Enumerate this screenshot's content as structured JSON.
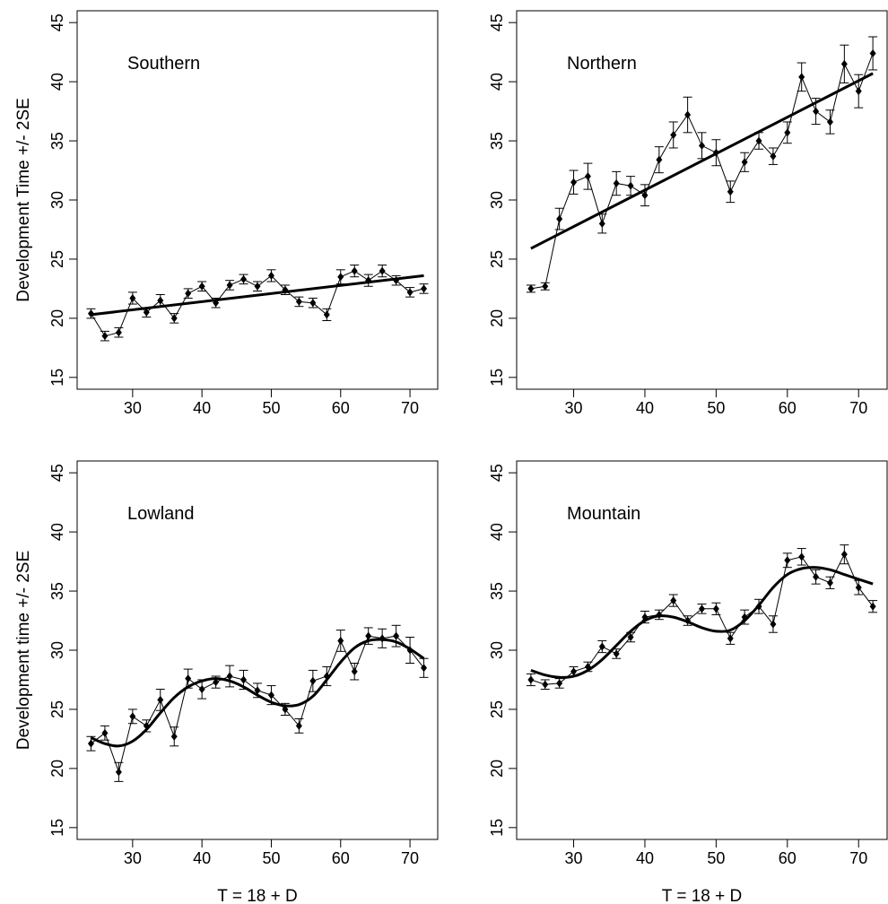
{
  "chart_data": [
    {
      "type": "line",
      "panel_label": "Southern",
      "ylabel": "Development Time +/- 2SE",
      "xlabel": "",
      "xlim": [
        22,
        74
      ],
      "ylim": [
        14,
        46
      ],
      "x_ticks": [
        30,
        40,
        50,
        60,
        70
      ],
      "y_ticks": [
        15,
        20,
        25,
        30,
        35,
        40,
        45
      ],
      "x": [
        24,
        26,
        28,
        30,
        32,
        34,
        36,
        38,
        40,
        42,
        44,
        46,
        48,
        50,
        52,
        54,
        56,
        58,
        60,
        62,
        64,
        66,
        68,
        70,
        72
      ],
      "y": [
        20.4,
        18.5,
        18.8,
        21.7,
        20.5,
        21.5,
        20.0,
        22.1,
        22.7,
        21.3,
        22.8,
        23.3,
        22.7,
        23.6,
        22.4,
        21.4,
        21.3,
        20.3,
        23.5,
        24.0,
        23.2,
        24.0,
        23.2,
        22.2,
        22.5
      ],
      "se2": [
        0.4,
        0.4,
        0.4,
        0.5,
        0.4,
        0.5,
        0.4,
        0.4,
        0.4,
        0.4,
        0.4,
        0.4,
        0.4,
        0.5,
        0.4,
        0.4,
        0.4,
        0.5,
        0.6,
        0.5,
        0.5,
        0.5,
        0.4,
        0.4,
        0.4
      ],
      "fit": {
        "type": "linear",
        "x": [
          24,
          72
        ],
        "y": [
          20.3,
          23.6
        ]
      }
    },
    {
      "type": "line",
      "panel_label": "Northern",
      "ylabel": "",
      "xlabel": "",
      "xlim": [
        22,
        74
      ],
      "ylim": [
        14,
        46
      ],
      "x_ticks": [
        30,
        40,
        50,
        60,
        70
      ],
      "y_ticks": [
        15,
        20,
        25,
        30,
        35,
        40,
        45
      ],
      "x": [
        24,
        26,
        28,
        30,
        32,
        34,
        36,
        38,
        40,
        42,
        44,
        46,
        48,
        50,
        52,
        54,
        56,
        58,
        60,
        62,
        64,
        66,
        68,
        70,
        72
      ],
      "y": [
        22.5,
        22.7,
        28.4,
        31.5,
        32.0,
        28.0,
        31.4,
        31.2,
        30.4,
        33.4,
        35.5,
        37.2,
        34.6,
        34.0,
        30.7,
        33.2,
        35.0,
        33.7,
        35.7,
        40.4,
        37.5,
        36.6,
        41.5,
        39.2,
        42.4
      ],
      "se2": [
        0.3,
        0.3,
        0.9,
        1.0,
        1.1,
        0.8,
        1.0,
        0.8,
        0.9,
        1.1,
        1.1,
        1.5,
        1.1,
        1.1,
        0.9,
        0.8,
        0.7,
        0.7,
        0.9,
        1.2,
        1.1,
        1.0,
        1.6,
        1.4,
        1.4
      ],
      "fit": {
        "type": "linear",
        "x": [
          24,
          72
        ],
        "y": [
          25.9,
          40.7
        ]
      }
    },
    {
      "type": "line",
      "panel_label": "Lowland",
      "ylabel": "Development time +/- 2SE",
      "xlabel": "T = 18 + D",
      "xlim": [
        22,
        74
      ],
      "ylim": [
        14,
        46
      ],
      "x_ticks": [
        30,
        40,
        50,
        60,
        70
      ],
      "y_ticks": [
        15,
        20,
        25,
        30,
        35,
        40,
        45
      ],
      "x": [
        24,
        26,
        28,
        30,
        32,
        34,
        36,
        38,
        40,
        42,
        44,
        46,
        48,
        50,
        52,
        54,
        56,
        58,
        60,
        62,
        64,
        66,
        68,
        70,
        72
      ],
      "y": [
        22.1,
        23.0,
        19.7,
        24.4,
        23.6,
        25.8,
        22.7,
        27.6,
        26.7,
        27.3,
        27.8,
        27.5,
        26.6,
        26.2,
        25.0,
        23.6,
        27.4,
        27.8,
        30.8,
        28.2,
        31.2,
        31.0,
        31.2,
        30.0,
        28.5
      ],
      "se2": [
        0.6,
        0.6,
        0.8,
        0.6,
        0.5,
        0.9,
        0.8,
        0.8,
        0.8,
        0.5,
        0.9,
        0.8,
        0.6,
        0.8,
        0.5,
        0.6,
        0.9,
        0.8,
        0.9,
        0.7,
        0.7,
        0.8,
        0.9,
        1.1,
        0.8
      ],
      "fit": {
        "type": "smooth",
        "x": [
          24,
          26,
          28,
          30,
          32,
          34,
          36,
          38,
          40,
          42,
          44,
          46,
          48,
          50,
          52,
          54,
          56,
          58,
          60,
          62,
          64,
          66,
          68,
          70,
          72
        ],
        "y": [
          22.6,
          22.1,
          21.9,
          22.3,
          23.3,
          24.7,
          26.0,
          26.9,
          27.4,
          27.6,
          27.4,
          26.9,
          26.2,
          25.6,
          25.3,
          25.4,
          26.1,
          27.5,
          29.0,
          30.2,
          30.8,
          30.9,
          30.7,
          30.1,
          29.3
        ]
      }
    },
    {
      "type": "line",
      "panel_label": "Mountain",
      "ylabel": "",
      "xlabel": "T = 18 + D",
      "xlim": [
        22,
        74
      ],
      "ylim": [
        14,
        46
      ],
      "x_ticks": [
        30,
        40,
        50,
        60,
        70
      ],
      "y_ticks": [
        15,
        20,
        25,
        30,
        35,
        40,
        45
      ],
      "x": [
        24,
        26,
        28,
        30,
        32,
        34,
        36,
        38,
        40,
        42,
        44,
        46,
        48,
        50,
        52,
        54,
        56,
        58,
        60,
        62,
        64,
        66,
        68,
        70,
        72
      ],
      "y": [
        27.5,
        27.1,
        27.2,
        28.2,
        28.6,
        30.3,
        29.7,
        31.1,
        32.8,
        33.0,
        34.2,
        32.5,
        33.5,
        33.5,
        31.0,
        32.8,
        33.7,
        32.2,
        37.6,
        37.9,
        36.2,
        35.7,
        38.1,
        35.3,
        33.7
      ],
      "se2": [
        0.5,
        0.4,
        0.4,
        0.4,
        0.4,
        0.5,
        0.4,
        0.4,
        0.5,
        0.4,
        0.5,
        0.4,
        0.4,
        0.5,
        0.5,
        0.6,
        0.6,
        0.7,
        0.6,
        0.7,
        0.6,
        0.5,
        0.8,
        0.6,
        0.5
      ],
      "fit": {
        "type": "smooth",
        "x": [
          24,
          26,
          28,
          30,
          32,
          34,
          36,
          38,
          40,
          42,
          44,
          46,
          48,
          50,
          52,
          54,
          56,
          58,
          60,
          62,
          64,
          66,
          68,
          70,
          72
        ],
        "y": [
          28.3,
          27.9,
          27.7,
          27.8,
          28.3,
          29.2,
          30.4,
          31.6,
          32.5,
          32.9,
          32.8,
          32.4,
          31.9,
          31.6,
          31.7,
          32.5,
          33.8,
          35.3,
          36.4,
          36.9,
          37.0,
          36.8,
          36.4,
          36.0,
          35.6
        ]
      }
    }
  ]
}
